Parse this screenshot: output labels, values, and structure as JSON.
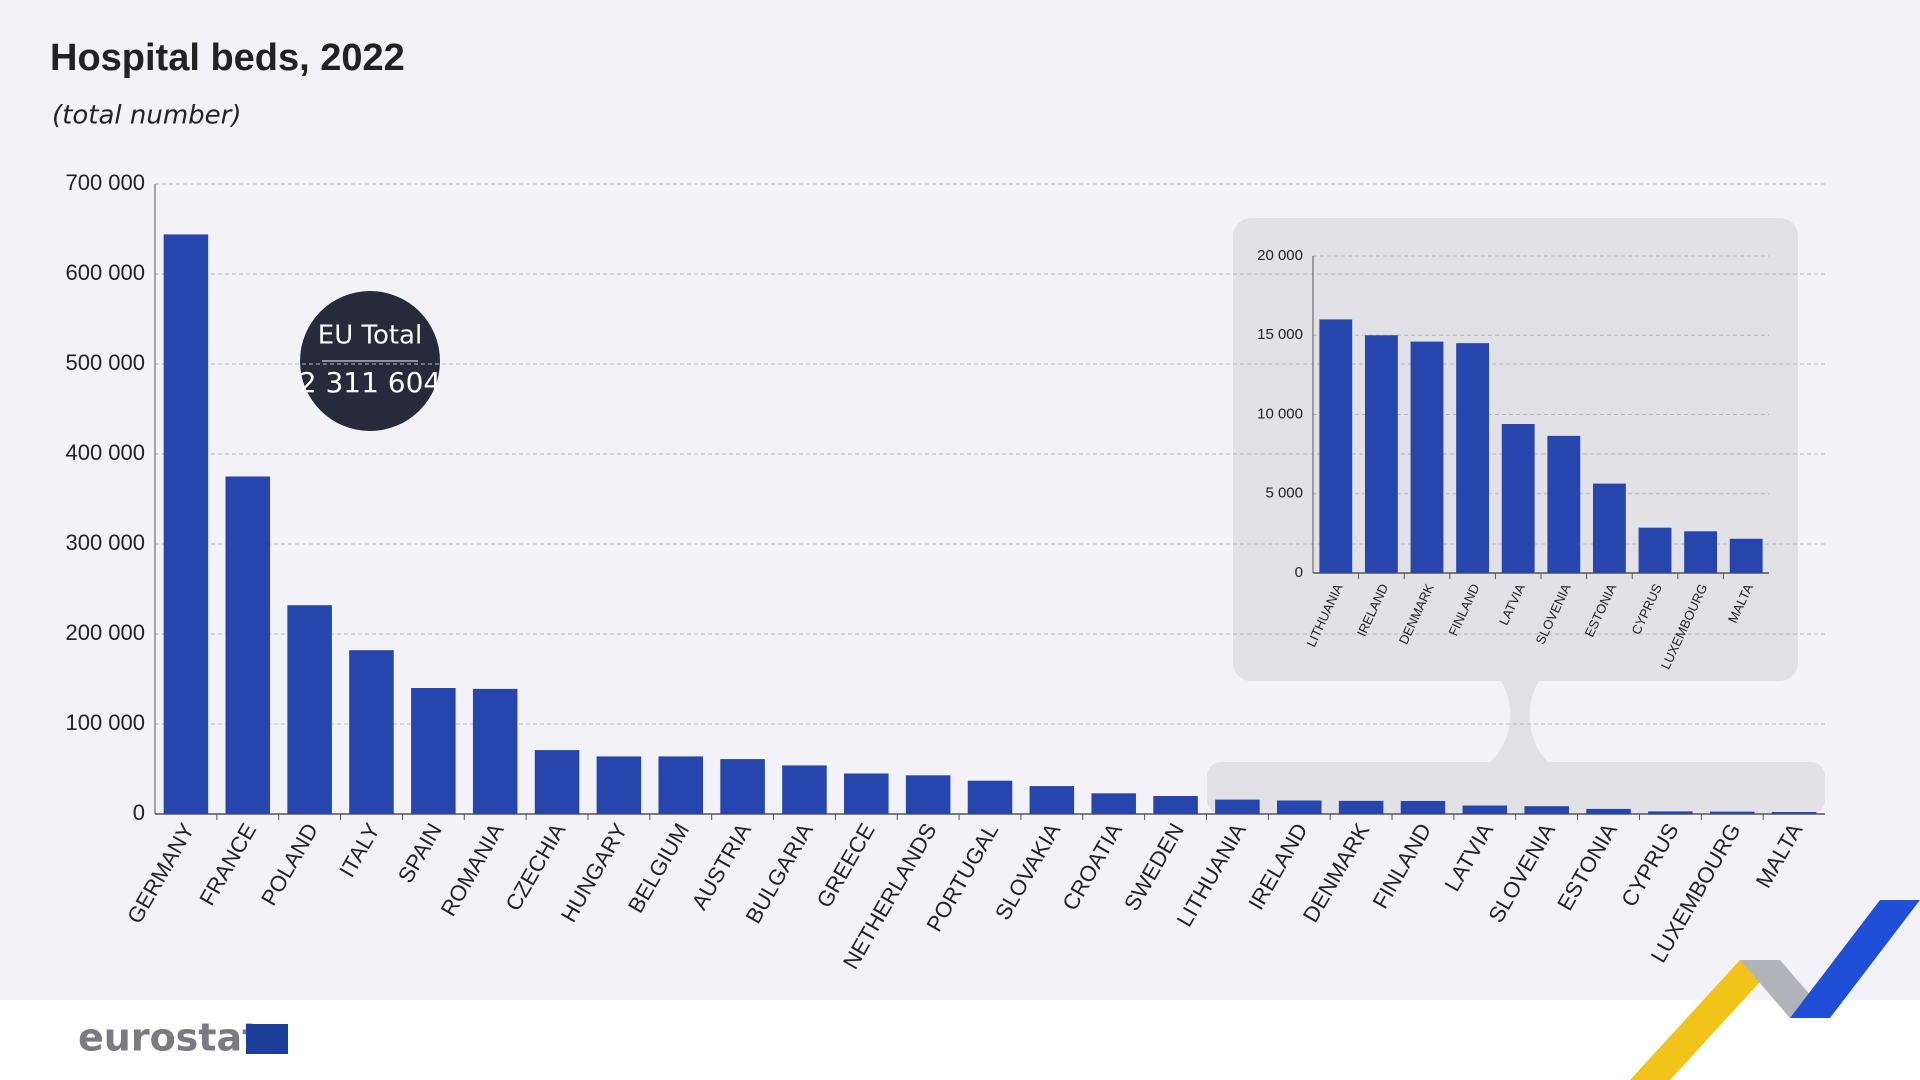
{
  "chart_data": [
    {
      "type": "bar",
      "title": "Hospital beds, 2022",
      "subtitle": "(total number)",
      "annotation": {
        "label": "EU Total",
        "value": "2 311 604"
      },
      "categories": [
        "GERMANY",
        "FRANCE",
        "POLAND",
        "ITALY",
        "SPAIN",
        "ROMANIA",
        "CZECHIA",
        "HUNGARY",
        "BELGIUM",
        "AUSTRIA",
        "BULGARIA",
        "GREECE",
        "NETHERLANDS",
        "PORTUGAL",
        "SLOVAKIA",
        "CROATIA",
        "SWEDEN",
        "LITHUANIA",
        "IRELAND",
        "DENMARK",
        "FINLAND",
        "LATVIA",
        "SLOVENIA",
        "ESTONIA",
        "CYPRUS",
        "LUXEMBOURG",
        "MALTA"
      ],
      "values": [
        644000,
        375000,
        232000,
        182000,
        140000,
        139000,
        71000,
        64000,
        64000,
        61000,
        54000,
        45000,
        43000,
        37000,
        31000,
        23000,
        20000,
        16000,
        15000,
        14600,
        14500,
        9400,
        8650,
        5640,
        2860,
        2630,
        2160
      ],
      "color": "#2645ad",
      "ylim": [
        0,
        700000
      ],
      "yticks": [
        0,
        {
          "value": 100000,
          "label": "100 000"
        },
        {
          "value": 200000,
          "label": "200 000"
        },
        {
          "value": 300000,
          "label": "300 000"
        },
        {
          "value": 400000,
          "label": "400 000"
        },
        {
          "value": 500000,
          "label": "500 000"
        },
        {
          "value": 600000,
          "label": "600 000"
        },
        {
          "value": 700000,
          "label": "700 000"
        }
      ],
      "grid": true
    },
    {
      "type": "bar",
      "categories": [
        "LITHUANIA",
        "IRELAND",
        "DENMARK",
        "FINLAND",
        "LATVIA",
        "SLOVENIA",
        "ESTONIA",
        "CYPRUS",
        "LUXEMBOURG",
        "MALTA"
      ],
      "values": [
        16000,
        15000,
        14600,
        14500,
        9400,
        8650,
        5640,
        2860,
        2630,
        2160
      ],
      "color": "#2645ad",
      "ylim": [
        0,
        20000
      ],
      "yticks": [
        0,
        {
          "value": 5000,
          "label": "5 000"
        },
        {
          "value": 10000,
          "label": "10 000"
        },
        {
          "value": 15000,
          "label": "15 000"
        },
        {
          "value": 20000,
          "label": "20 000"
        }
      ],
      "grid": true
    }
  ],
  "footer": {
    "logo": "eurostat"
  }
}
